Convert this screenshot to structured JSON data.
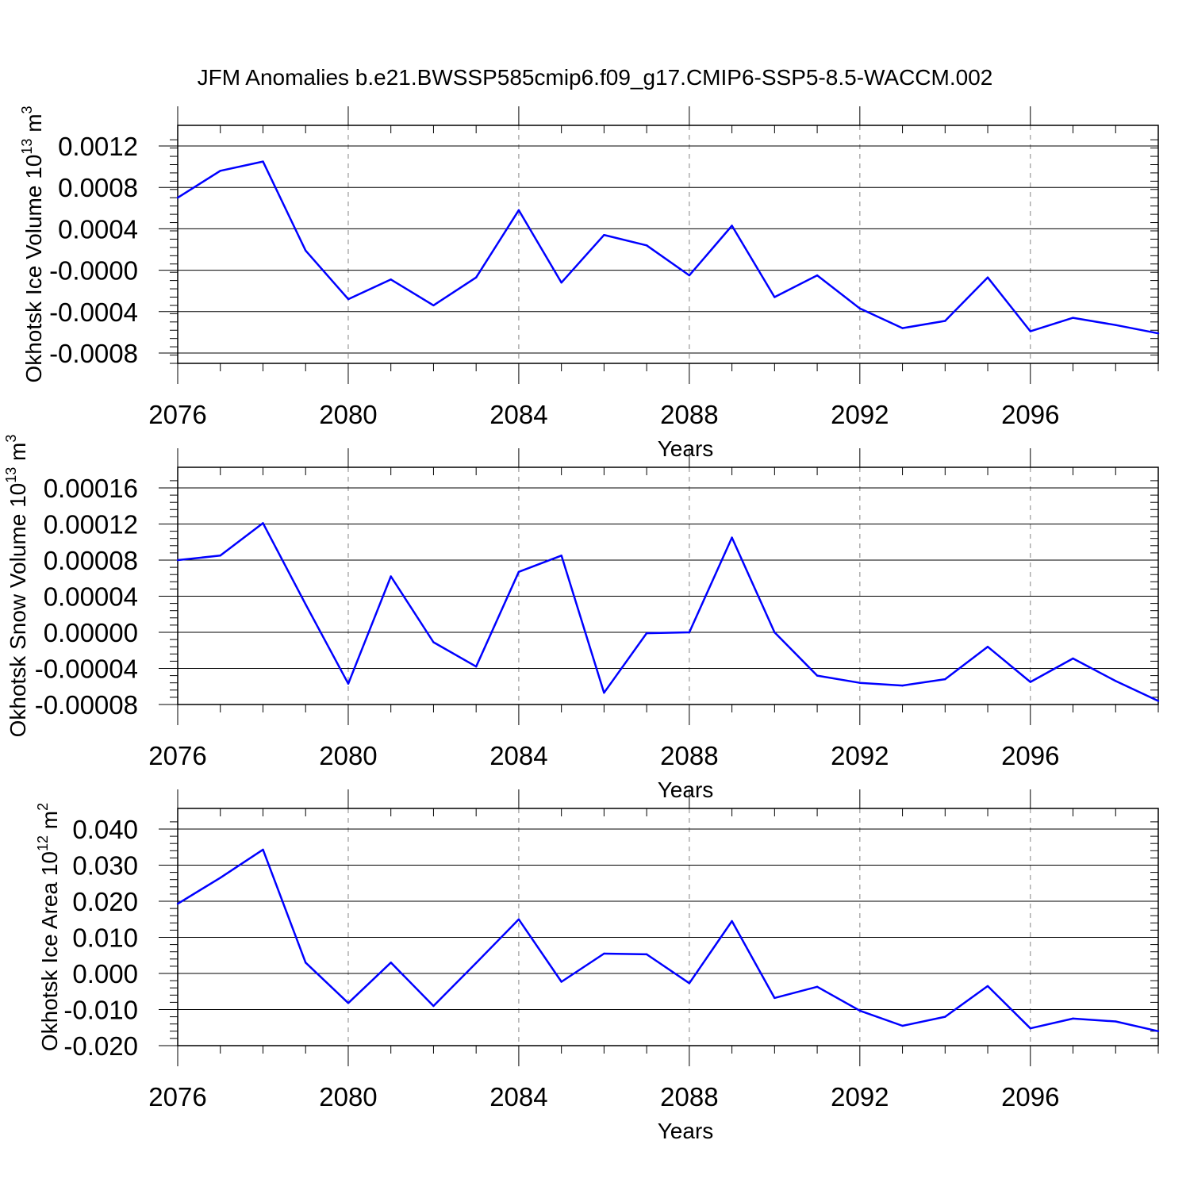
{
  "title": "JFM Anomalies b.e21.BWSSP585cmip6.f09_g17.CMIP6-SSP5-8.5-WACCM.002",
  "colors": {
    "series": "#0000ff",
    "axis": "#000000",
    "grid": "#999999"
  },
  "chart_data": [
    {
      "type": "line",
      "ylabel": "Okhotsk Ice Volume 10",
      "ylabel_exp": "13",
      "ylabel_unit": "m",
      "ylabel_unit_exp": "3",
      "xlabel": "Years",
      "xlim": [
        2076,
        2099
      ],
      "ylim": [
        -0.0009,
        0.0012
      ],
      "yticks": [
        0.0012,
        0.0008,
        0.0004,
        0.0,
        -0.0004,
        -0.0008
      ],
      "ytick_labels": [
        "0.0012",
        "0.0008",
        "0.0004",
        "-0.0000",
        "-0.0004",
        "-0.0008"
      ],
      "xticks": [
        2076,
        2080,
        2084,
        2088,
        2092,
        2096
      ],
      "xtick_labels": [
        "2076",
        "2080",
        "2084",
        "2088",
        "2092",
        "2096"
      ],
      "grid": "vertical dashed at major x ticks",
      "x": [
        2076,
        2077,
        2078,
        2079,
        2080,
        2081,
        2082,
        2083,
        2084,
        2085,
        2086,
        2087,
        2088,
        2089,
        2090,
        2091,
        2092,
        2093,
        2094,
        2095,
        2096,
        2097,
        2098,
        2099
      ],
      "values": [
        0.0007,
        0.00096,
        0.00105,
        0.00019,
        -0.00028,
        -9e-05,
        -0.00034,
        -7e-05,
        0.00058,
        -0.00012,
        0.00034,
        0.00024,
        -5e-05,
        0.00043,
        -0.00026,
        -5e-05,
        -0.00037,
        -0.00056,
        -0.00049,
        -7e-05,
        -0.00059,
        -0.00046,
        -0.00053,
        -0.00061
      ]
    },
    {
      "type": "line",
      "ylabel": "Okhotsk Snow Volume 10",
      "ylabel_exp": "13",
      "ylabel_unit": "m",
      "ylabel_unit_exp": "3",
      "xlabel": "Years",
      "xlim": [
        2076,
        2099
      ],
      "ylim": [
        -8e-05,
        0.00016
      ],
      "yticks": [
        0.00016,
        0.00012,
        8e-05,
        4e-05,
        0.0,
        -4e-05,
        -8e-05
      ],
      "ytick_labels": [
        "0.00016",
        "0.00012",
        "0.00008",
        "0.00004",
        "0.00000",
        "-0.00004",
        "-0.00008"
      ],
      "xticks": [
        2076,
        2080,
        2084,
        2088,
        2092,
        2096
      ],
      "xtick_labels": [
        "2076",
        "2080",
        "2084",
        "2088",
        "2092",
        "2096"
      ],
      "grid": "vertical dashed at major x ticks",
      "x": [
        2076,
        2077,
        2078,
        2079,
        2080,
        2081,
        2082,
        2083,
        2084,
        2085,
        2086,
        2087,
        2088,
        2089,
        2090,
        2091,
        2092,
        2093,
        2094,
        2095,
        2096,
        2097,
        2098,
        2099
      ],
      "values": [
        8e-05,
        8.5e-05,
        0.000121,
        3.1e-05,
        -5.7e-05,
        6.2e-05,
        -1.1e-05,
        -3.8e-05,
        6.7e-05,
        8.5e-05,
        -6.7e-05,
        -1e-06,
        0.0,
        0.000105,
        0.0,
        -4.8e-05,
        -5.6e-05,
        -5.9e-05,
        -5.2e-05,
        -1.6e-05,
        -5.5e-05,
        -2.9e-05,
        -5.4e-05,
        -7.6e-05
      ]
    },
    {
      "type": "line",
      "ylabel": "Okhotsk Ice Area 10",
      "ylabel_exp": "12",
      "ylabel_unit": "m",
      "ylabel_unit_exp": "2",
      "xlabel": "Years",
      "xlim": [
        2076,
        2099
      ],
      "ylim": [
        -0.02,
        0.04
      ],
      "yticks": [
        0.04,
        0.03,
        0.02,
        0.01,
        0.0,
        -0.01,
        -0.02
      ],
      "ytick_labels": [
        "0.040",
        "0.030",
        "0.020",
        "0.010",
        "0.000",
        "-0.010",
        "-0.020"
      ],
      "xticks": [
        2076,
        2080,
        2084,
        2088,
        2092,
        2096
      ],
      "xtick_labels": [
        "2076",
        "2080",
        "2084",
        "2088",
        "2092",
        "2096"
      ],
      "grid": "vertical dashed at major x ticks",
      "x": [
        2076,
        2077,
        2078,
        2079,
        2080,
        2081,
        2082,
        2083,
        2084,
        2085,
        2086,
        2087,
        2088,
        2089,
        2090,
        2091,
        2092,
        2093,
        2094,
        2095,
        2096,
        2097,
        2098,
        2099
      ],
      "values": [
        0.0193,
        0.0265,
        0.0343,
        0.003,
        -0.0082,
        0.003,
        -0.009,
        0.0029,
        0.015,
        -0.0023,
        0.0055,
        0.0053,
        -0.0027,
        0.0145,
        -0.0068,
        -0.0037,
        -0.0103,
        -0.0145,
        -0.012,
        -0.0035,
        -0.0152,
        -0.0125,
        -0.0133,
        -0.016
      ]
    }
  ]
}
